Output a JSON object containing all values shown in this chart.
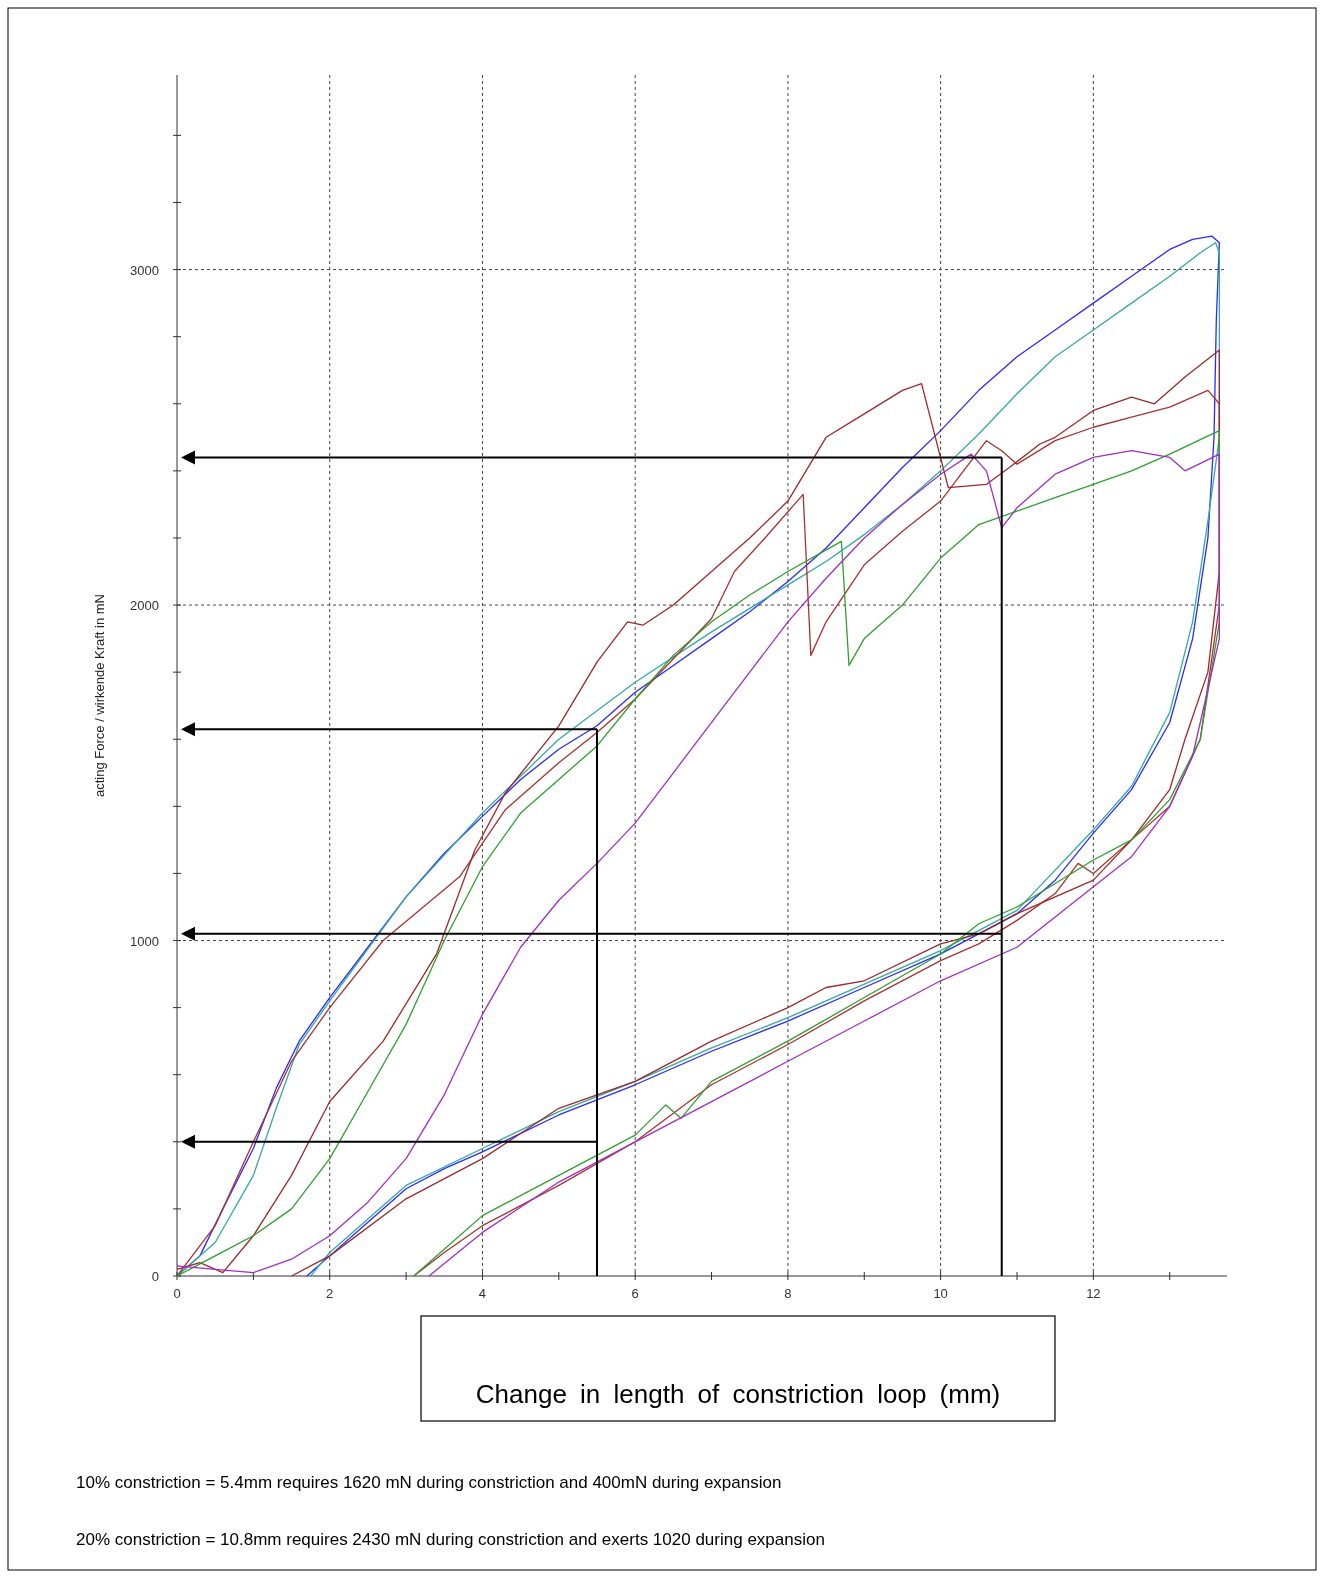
{
  "chart_data": {
    "type": "line",
    "xlabel": "Change in length of constriction loop (mm)",
    "ylabel": "acting Force / wirkende Kraft in mN",
    "xlim": [
      0,
      13.75
    ],
    "ylim": [
      0,
      3580
    ],
    "xticks": [
      0,
      {
        "value": 1,
        "label": null
      },
      2,
      {
        "value": 3,
        "label": null
      },
      4,
      {
        "value": 5,
        "label": null
      },
      6,
      {
        "value": 7,
        "label": null
      },
      8,
      {
        "value": 9,
        "label": null
      },
      10,
      {
        "value": 11,
        "label": null
      },
      12,
      {
        "value": 13,
        "label": null
      }
    ],
    "yticks": [
      0,
      {
        "value": 200,
        "label": null
      },
      {
        "value": 400,
        "label": null
      },
      {
        "value": 600,
        "label": null
      },
      {
        "value": 800,
        "label": null
      },
      1000,
      {
        "value": 1200,
        "label": null
      },
      {
        "value": 1400,
        "label": null
      },
      {
        "value": 1600,
        "label": null
      },
      {
        "value": 1800,
        "label": null
      },
      2000,
      {
        "value": 2200,
        "label": null
      },
      {
        "value": 2400,
        "label": null
      },
      {
        "value": 2600,
        "label": null
      },
      {
        "value": 2800,
        "label": null
      },
      3000,
      {
        "value": 3200,
        "label": null
      },
      {
        "value": 3400,
        "label": null
      }
    ],
    "grid": true,
    "series": [
      {
        "color": "#2a2aff",
        "x": [
          0,
          0.3,
          0.6,
          1,
          1.3,
          1.6,
          2,
          2.5,
          3,
          3.5,
          4,
          4.5,
          5,
          5.5,
          6,
          6.5,
          7,
          7.5,
          8,
          8.5,
          9,
          9.5,
          10,
          10.5,
          11,
          11.5,
          12,
          12.5,
          13,
          13.3,
          13.55,
          13.65,
          13.61,
          13.58,
          13.5,
          13.3,
          13,
          12.5,
          12,
          11.5,
          11,
          10.5,
          10,
          9,
          8,
          7,
          6,
          5,
          4,
          3.5,
          3,
          2.5,
          2,
          1.7
        ],
        "values": [
          0,
          60,
          200,
          380,
          560,
          700,
          830,
          980,
          1130,
          1260,
          1370,
          1480,
          1570,
          1640,
          1740,
          1820,
          1900,
          1980,
          2070,
          2170,
          2290,
          2410,
          2520,
          2640,
          2740,
          2820,
          2900,
          2980,
          3060,
          3090,
          3100,
          3080,
          2850,
          2500,
          2200,
          1900,
          1650,
          1450,
          1320,
          1180,
          1080,
          1020,
          960,
          860,
          760,
          670,
          570,
          480,
          370,
          320,
          260,
          160,
          60,
          0
        ]
      },
      {
        "color": "#36a8a8",
        "x": [
          0,
          0.5,
          1,
          1.3,
          1.6,
          2,
          3,
          4,
          5,
          6,
          7,
          8,
          8.5,
          9,
          9.5,
          10,
          10.5,
          11,
          11.5,
          12,
          12.5,
          13,
          13.4,
          13.6,
          13.65,
          13.65,
          13.5,
          13.3,
          13,
          12.5,
          12,
          11,
          10,
          9,
          8,
          7,
          6,
          5,
          4,
          3,
          2.5,
          2,
          1.75
        ],
        "values": [
          0,
          100,
          300,
          500,
          690,
          820,
          1130,
          1380,
          1600,
          1770,
          1920,
          2060,
          2130,
          2210,
          2300,
          2400,
          2510,
          2630,
          2740,
          2820,
          2900,
          2980,
          3050,
          3080,
          3050,
          2500,
          2250,
          1950,
          1680,
          1460,
          1330,
          1090,
          970,
          870,
          770,
          680,
          580,
          490,
          380,
          270,
          170,
          70,
          0
        ]
      },
      {
        "color": "#a83232",
        "x": [
          0,
          0.5,
          1,
          1.5,
          2,
          2.7,
          3.7,
          4.3,
          5,
          5.5,
          6,
          6.5,
          7,
          7.3,
          7.7,
          8.2,
          8.3,
          8.5,
          9,
          9.5,
          10,
          10.3,
          10.6,
          10.8,
          11,
          11.5,
          12,
          12.5,
          13,
          13.5,
          13.65,
          13.65,
          13.4,
          13,
          12.5,
          12,
          11.8,
          11.5,
          11,
          10.5,
          10,
          9,
          8,
          7,
          6,
          5,
          4,
          3.5,
          3.1
        ],
        "values": [
          0,
          150,
          400,
          640,
          800,
          1000,
          1190,
          1390,
          1530,
          1620,
          1720,
          1840,
          1960,
          2100,
          2200,
          2330,
          1850,
          1950,
          2120,
          2220,
          2310,
          2400,
          2490,
          2460,
          2420,
          2490,
          2530,
          2560,
          2590,
          2640,
          2600,
          2000,
          1600,
          1400,
          1300,
          1200,
          1230,
          1140,
          1060,
          990,
          940,
          820,
          690,
          570,
          400,
          270,
          150,
          70,
          0
        ]
      },
      {
        "color": "#9c2a2a",
        "x": [
          0,
          0.3,
          0.6,
          1,
          1.5,
          2,
          2.7,
          3.4,
          3.9,
          4.3,
          5,
          5.5,
          5.9,
          6.1,
          6.5,
          7,
          7.5,
          8,
          8.5,
          9,
          9.5,
          9.75,
          10.1,
          10.6,
          10.9,
          11.3,
          11.5,
          12,
          12.5,
          12.8,
          13.2,
          13.65,
          13.65,
          13.5,
          13.2,
          13,
          12.5,
          12,
          11,
          10.5,
          10,
          9,
          8.5,
          8,
          7,
          6,
          5,
          4,
          3,
          2,
          1.5
        ],
        "values": [
          20,
          40,
          10,
          120,
          300,
          520,
          700,
          960,
          1270,
          1440,
          1640,
          1830,
          1950,
          1940,
          2000,
          2100,
          2200,
          2310,
          2500,
          2570,
          2640,
          2660,
          2350,
          2360,
          2410,
          2480,
          2500,
          2580,
          2620,
          2600,
          2680,
          2760,
          2100,
          1800,
          1600,
          1450,
          1300,
          1180,
          1080,
          1020,
          990,
          880,
          860,
          800,
          700,
          580,
          500,
          350,
          230,
          60,
          0
        ]
      },
      {
        "color": "#2ea02e",
        "x": [
          0,
          0.5,
          1,
          1.5,
          2,
          2.5,
          3,
          3.5,
          4,
          4.5,
          5,
          5.5,
          6,
          6.5,
          7,
          7.5,
          8,
          8.7,
          8.8,
          9,
          9.5,
          10,
          10.3,
          10.5,
          11,
          11.5,
          12,
          12.5,
          13,
          13.65,
          13.65,
          13.4,
          13,
          12.5,
          12,
          11,
          10.5,
          10,
          9,
          8,
          7,
          6.6,
          6.4,
          6,
          5,
          4,
          3.5,
          3.1
        ],
        "values": [
          0,
          60,
          120,
          200,
          350,
          550,
          750,
          1000,
          1220,
          1380,
          1480,
          1580,
          1720,
          1850,
          1950,
          2030,
          2100,
          2190,
          1820,
          1900,
          2000,
          2140,
          2200,
          2240,
          2280,
          2320,
          2360,
          2400,
          2450,
          2520,
          1950,
          1600,
          1420,
          1300,
          1240,
          1100,
          1050,
          960,
          830,
          700,
          580,
          470,
          510,
          420,
          300,
          180,
          80,
          0
        ]
      },
      {
        "color": "#a22ec2",
        "x": [
          0,
          0.5,
          1,
          1.5,
          2,
          2.5,
          3,
          3.5,
          4,
          4.5,
          5,
          5.5,
          6,
          6.5,
          7,
          7.5,
          8,
          8.5,
          9,
          9.5,
          10,
          10.4,
          10.6,
          10.8,
          11,
          11.5,
          12,
          12.5,
          13,
          13.2,
          13.65,
          13.65,
          13.3,
          13,
          12.5,
          12,
          11,
          10,
          9,
          8,
          7,
          6,
          5,
          4,
          3.3
        ],
        "values": [
          30,
          20,
          10,
          50,
          120,
          220,
          350,
          540,
          780,
          980,
          1120,
          1230,
          1350,
          1500,
          1650,
          1800,
          1950,
          2080,
          2200,
          2300,
          2390,
          2450,
          2400,
          2230,
          2290,
          2390,
          2440,
          2460,
          2440,
          2400,
          2450,
          1900,
          1550,
          1400,
          1250,
          1160,
          980,
          880,
          760,
          640,
          520,
          400,
          280,
          130,
          0
        ]
      }
    ],
    "ref_lines": [
      {
        "axis": "x",
        "value": 5.5,
        "color": "#000000"
      },
      {
        "axis": "x",
        "value": 10.8,
        "color": "#000000"
      },
      {
        "axis": "y",
        "value": 400,
        "color": "#000000"
      },
      {
        "axis": "y",
        "value": 1630,
        "color": "#000000"
      },
      {
        "axis": "y",
        "value": 1020,
        "color": "#000000"
      },
      {
        "axis": "y",
        "value": 2440,
        "color": "#000000"
      }
    ],
    "annotations": [
      "10% constriction = 5.4mm requires 1620 mN during constriction and 400mN during expansion",
      "20% constriction = 10.8mm requires 2430 mN during constriction and exerts 1020 during expansion"
    ]
  }
}
